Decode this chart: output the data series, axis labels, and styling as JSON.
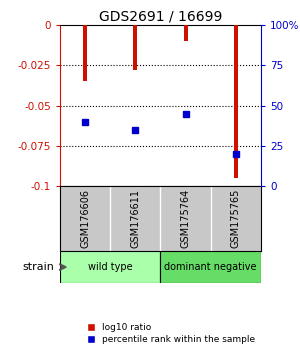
{
  "title": "GDS2691 / 16699",
  "samples": [
    "GSM176606",
    "GSM176611",
    "GSM175764",
    "GSM175765"
  ],
  "log10_ratio": [
    -0.035,
    -0.028,
    -0.01,
    -0.095
  ],
  "percentile_rank": [
    40,
    35,
    45,
    20
  ],
  "ylim_left": [
    -0.1,
    0
  ],
  "ylim_right": [
    0,
    100
  ],
  "yticks_left": [
    0,
    -0.025,
    -0.05,
    -0.075,
    -0.1
  ],
  "yticks_right": [
    0,
    25,
    50,
    75,
    100
  ],
  "bar_color": "#cc1100",
  "marker_color": "#0000cc",
  "bar_width": 0.08,
  "groups": [
    {
      "label": "wild type",
      "samples": [
        0,
        1
      ],
      "color": "#aaffaa"
    },
    {
      "label": "dominant negative",
      "samples": [
        2,
        3
      ],
      "color": "#66dd66"
    }
  ],
  "legend_red_label": "log10 ratio",
  "legend_blue_label": "percentile rank within the sample",
  "left_axis_color": "#cc1100",
  "right_axis_color": "#0000cc",
  "background_color": "#ffffff",
  "plot_bg_color": "#ffffff",
  "strain_label": "strain",
  "marker_size": 5,
  "sample_label_bg": "#c8c8c8",
  "grid_color": "#000000"
}
